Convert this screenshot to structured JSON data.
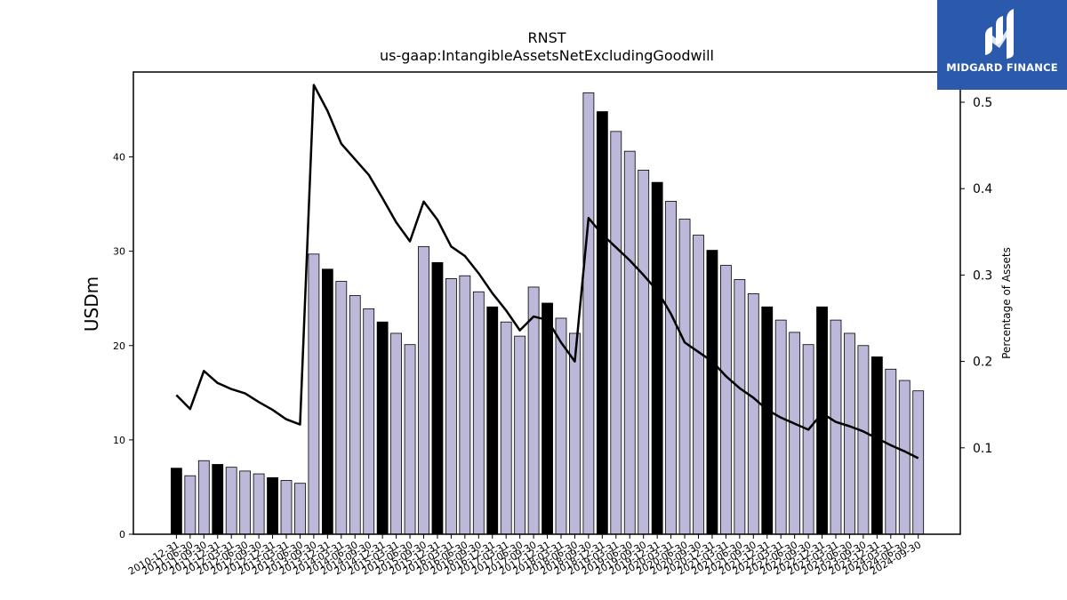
{
  "chart_data": {
    "type": "bar",
    "title": "RNST",
    "subtitle": "us-gaap:IntangibleAssetsNetExcludingGoodwill",
    "ylabel": "USDm",
    "y2label": "Percentage of Assets",
    "ylim": [
      0,
      49
    ],
    "y2lim": [
      0.0,
      0.535
    ],
    "yticks": [
      0,
      10,
      20,
      30,
      40
    ],
    "y2ticks": [
      0.1,
      0.2,
      0.3,
      0.4,
      0.5
    ],
    "categories": [
      "2010-12-31",
      "2011-06-30",
      "2011-09-30",
      "2011-12-31",
      "2012-03-31",
      "2012-06-30",
      "2012-09-30",
      "2012-12-31",
      "2013-03-31",
      "2013-06-30",
      "2013-09-30",
      "2013-12-31",
      "2014-03-31",
      "2014-06-30",
      "2014-09-30",
      "2014-12-31",
      "2015-03-31",
      "2015-06-30",
      "2015-09-30",
      "2015-12-31",
      "2016-03-31",
      "2016-06-30",
      "2016-09-30",
      "2016-12-31",
      "2017-03-31",
      "2017-06-30",
      "2017-09-30",
      "2017-12-31",
      "2018-03-31",
      "2018-06-30",
      "2018-09-30",
      "2018-12-31",
      "2019-03-31",
      "2019-06-30",
      "2019-09-30",
      "2019-12-31",
      "2020-03-31",
      "2020-06-30",
      "2020-09-30",
      "2020-12-31",
      "2021-03-31",
      "2021-06-30",
      "2021-09-30",
      "2021-12-31",
      "2022-03-31",
      "2022-06-30",
      "2022-09-30",
      "2022-12-31",
      "2023-03-31",
      "2023-06-30",
      "2023-09-30",
      "2023-12-31",
      "2024-03-31",
      "2024-06-30",
      "2024-09-30"
    ],
    "series": [
      {
        "type": "bar",
        "axis": "left",
        "values": [
          7.0,
          6.2,
          7.8,
          7.4,
          7.1,
          6.7,
          6.4,
          6.0,
          5.7,
          5.4,
          29.7,
          28.1,
          26.8,
          25.3,
          23.9,
          22.5,
          21.3,
          20.1,
          30.5,
          28.8,
          27.1,
          27.4,
          25.7,
          24.1,
          22.5,
          21.0,
          26.2,
          24.5,
          22.9,
          21.3,
          46.8,
          44.8,
          42.7,
          40.6,
          38.6,
          37.3,
          35.3,
          33.4,
          31.7,
          30.1,
          28.5,
          27.0,
          25.5,
          24.1,
          22.7,
          21.4,
          20.1,
          24.1,
          22.7,
          21.3,
          20.0,
          18.8,
          17.5,
          16.3,
          15.2
        ],
        "highlight_color": "#000000",
        "color": "#bbb8d9"
      },
      {
        "type": "line",
        "axis": "right",
        "values": [
          0.161,
          0.145,
          0.189,
          0.175,
          0.168,
          0.163,
          0.153,
          0.144,
          0.133,
          0.127,
          0.52,
          0.49,
          0.452,
          0.434,
          0.416,
          0.389,
          0.361,
          0.339,
          0.385,
          0.364,
          0.333,
          0.322,
          0.302,
          0.279,
          0.259,
          0.236,
          0.252,
          0.248,
          0.222,
          0.2,
          0.366,
          0.347,
          0.332,
          0.317,
          0.3,
          0.282,
          0.255,
          0.222,
          0.211,
          0.2,
          0.183,
          0.169,
          0.158,
          0.144,
          0.135,
          0.128,
          0.121,
          0.14,
          0.13,
          0.125,
          0.119,
          0.111,
          0.103,
          0.096,
          0.088
        ],
        "color": "#000000"
      }
    ],
    "highlighted_categories_pattern": "year-end (12-31) bars drawn in black"
  },
  "logo": {
    "text": "MIDGARD FINANCE",
    "bg_color": "#2b5aad"
  }
}
